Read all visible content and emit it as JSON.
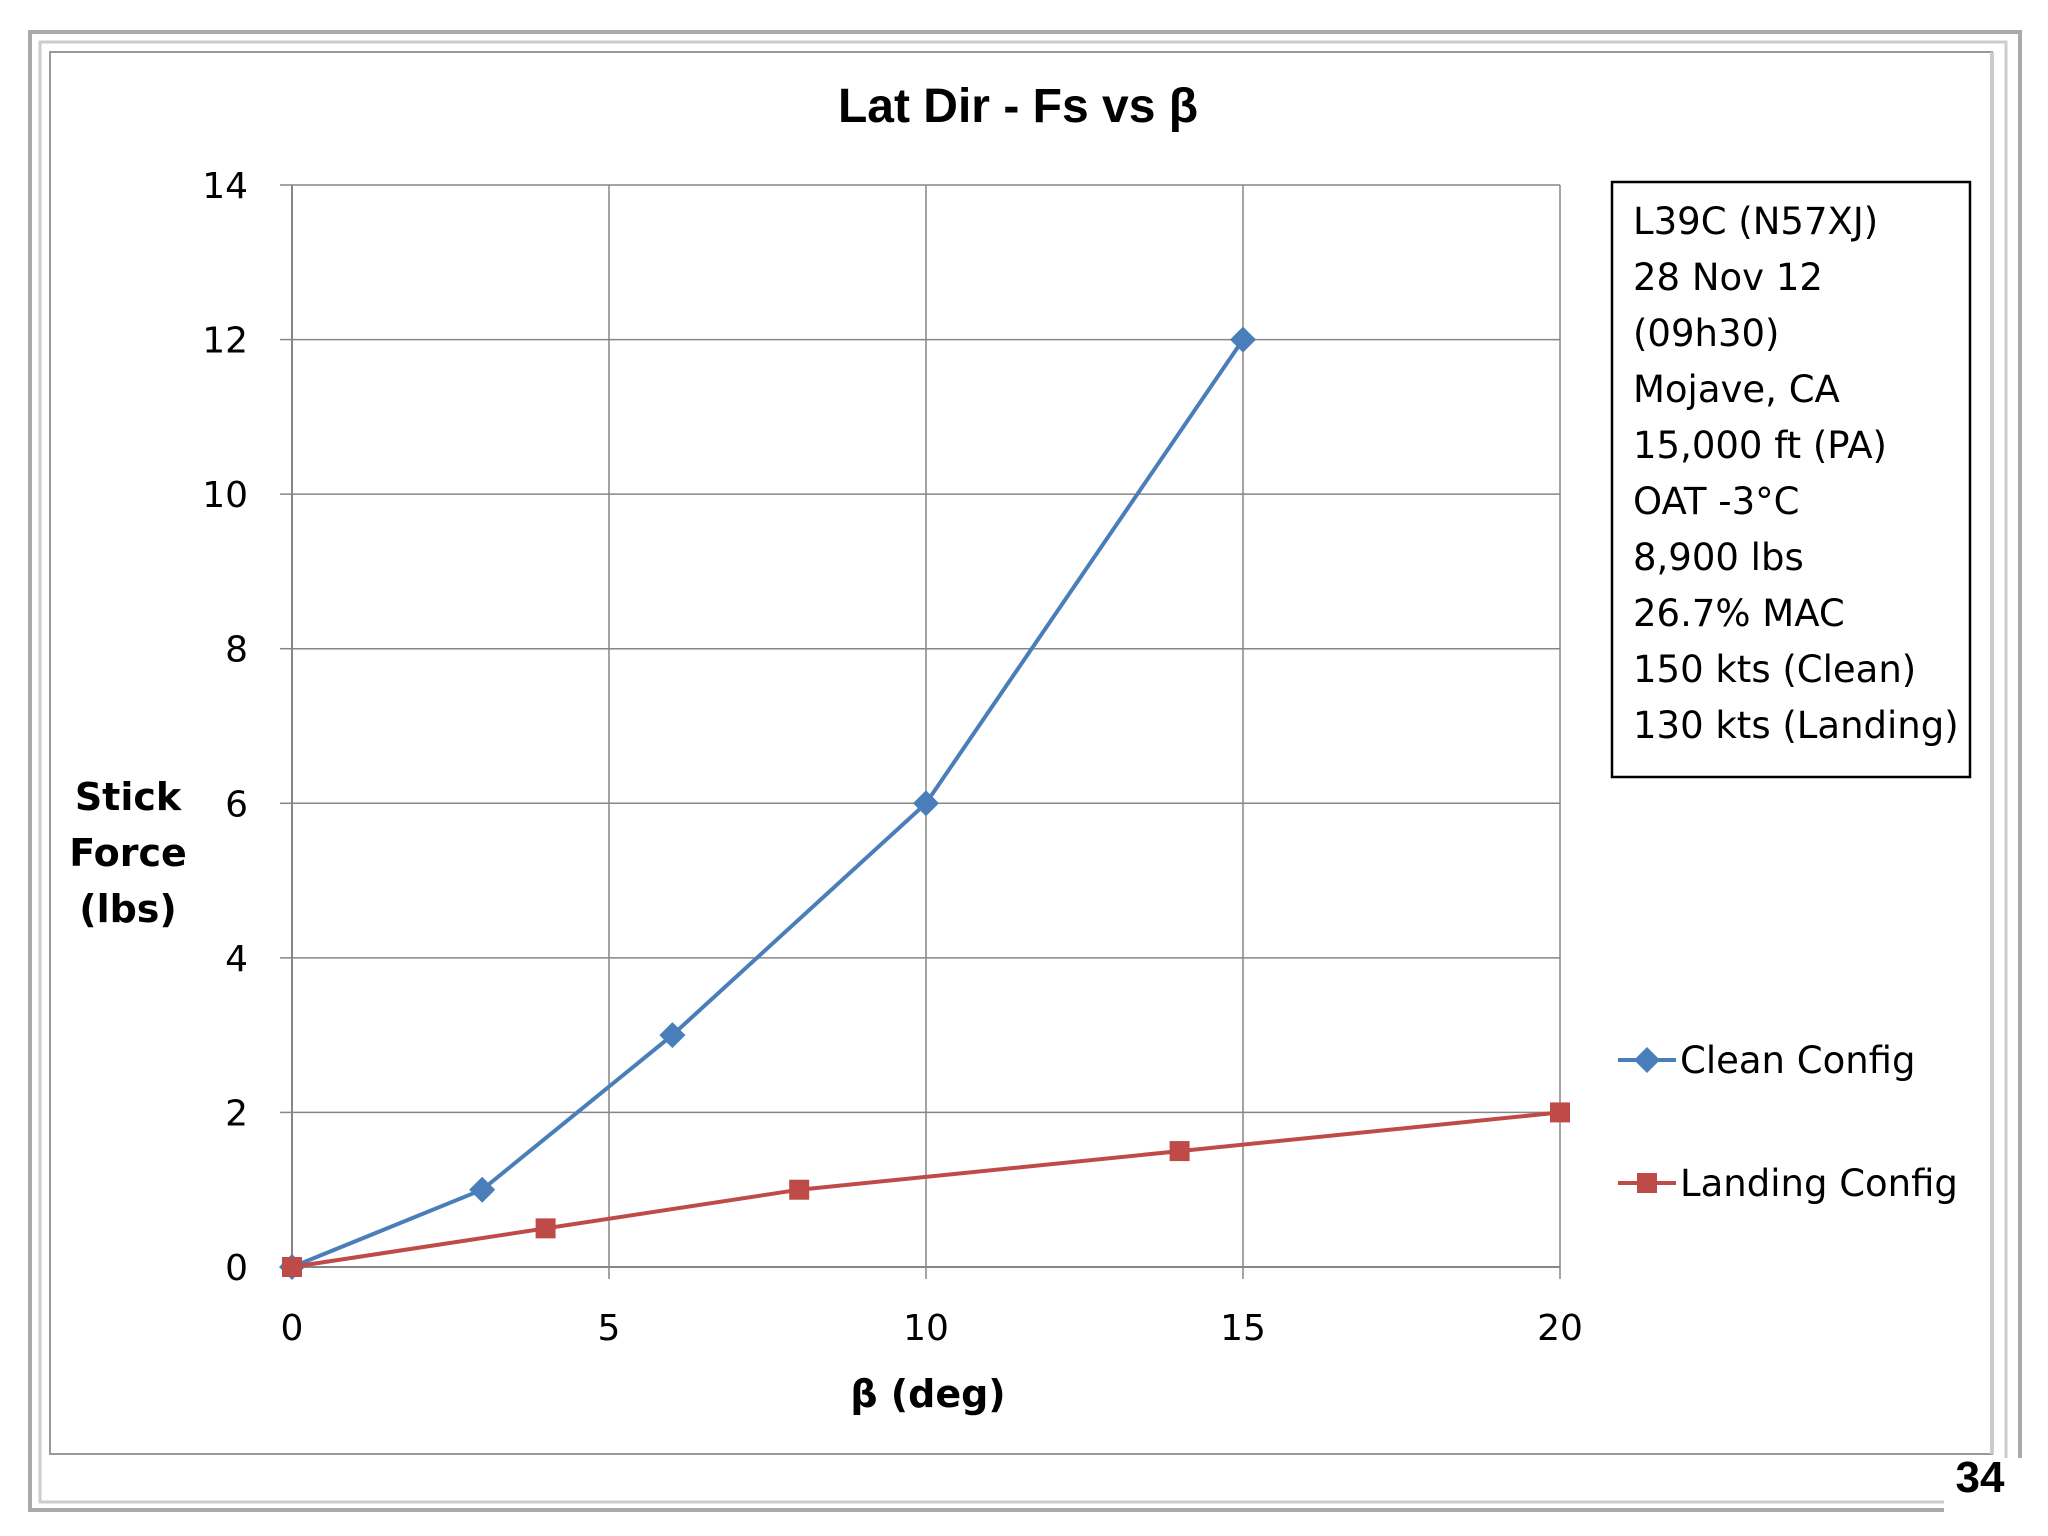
{
  "page_number": "34",
  "chart_data": {
    "type": "line",
    "title": "Lat Dir - Fs vs β",
    "xlabel": "β (deg)",
    "ylabel": [
      "Stick",
      "Force",
      "(lbs)"
    ],
    "xlim": [
      0,
      20
    ],
    "ylim": [
      0,
      14
    ],
    "x_ticks": [
      "0",
      "5",
      "10",
      "15",
      "20"
    ],
    "y_ticks": [
      "0",
      "2",
      "4",
      "6",
      "8",
      "10",
      "12",
      "14"
    ],
    "grid": true,
    "legend_position": "right",
    "series": [
      {
        "name": "Clean Config",
        "color": "#4a7ebb",
        "marker": "diamond",
        "x": [
          0,
          3,
          6,
          10,
          15
        ],
        "y": [
          0,
          1,
          3,
          6,
          12
        ]
      },
      {
        "name": "Landing Config",
        "color": "#be4b48",
        "marker": "square",
        "x": [
          0,
          4,
          8,
          14,
          20
        ],
        "y": [
          0,
          0.5,
          1,
          1.5,
          2
        ]
      }
    ],
    "info_box": [
      "L39C (N57XJ)",
      "28 Nov 12",
      "(09h30)",
      "Mojave, CA",
      "15,000 ft (PA)",
      "OAT -3°C",
      "8,900 lbs",
      "26.7% MAC",
      "150 kts (Clean)",
      "130 kts (Landing)"
    ]
  }
}
